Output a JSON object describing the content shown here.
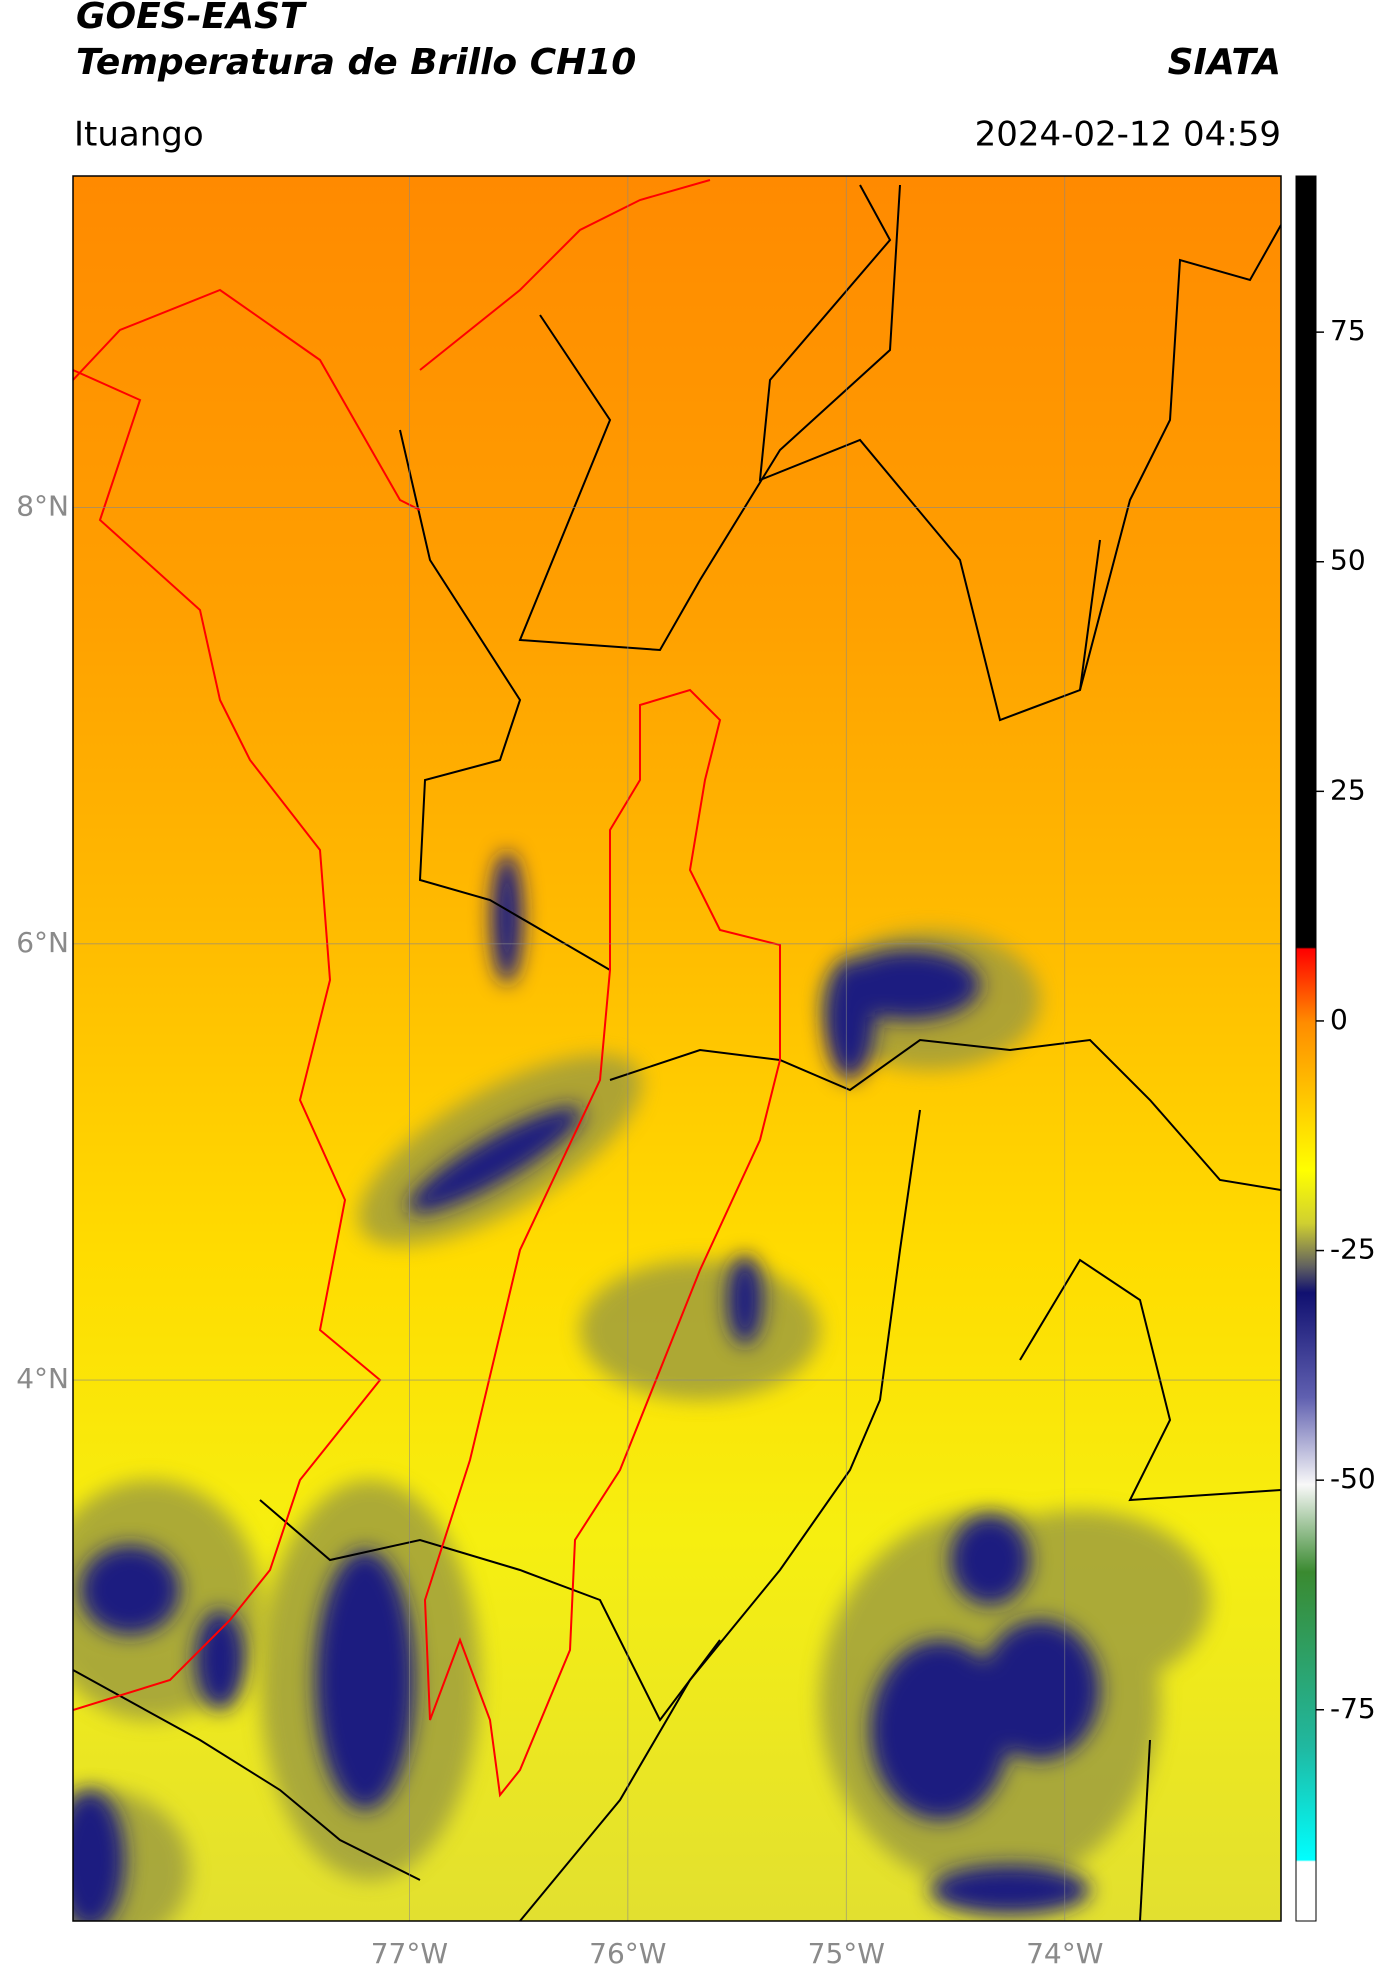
{
  "header": {
    "satellite": "GOES-EAST",
    "product": "Temperatura de Brillo CH10",
    "institution": "SIATA",
    "region": "Ituango",
    "datetime": "2024-02-12 04:59"
  },
  "map": {
    "xlim": [
      -78.54,
      -73.01
    ],
    "ylim": [
      1.52,
      9.52
    ],
    "xticks": [
      {
        "value": -77,
        "label": "77°W"
      },
      {
        "value": -76,
        "label": "76°W"
      },
      {
        "value": -75,
        "label": "75°W"
      },
      {
        "value": -74,
        "label": "74°W"
      }
    ],
    "yticks": [
      {
        "value": 8,
        "label": "8°N"
      },
      {
        "value": 6,
        "label": "6°N"
      },
      {
        "value": 4,
        "label": "4°N"
      }
    ],
    "grid": true
  },
  "colorbar": {
    "lim": [
      -98,
      92
    ],
    "ticks": [
      75,
      50,
      25,
      0,
      -25,
      -50,
      -75
    ]
  }
}
